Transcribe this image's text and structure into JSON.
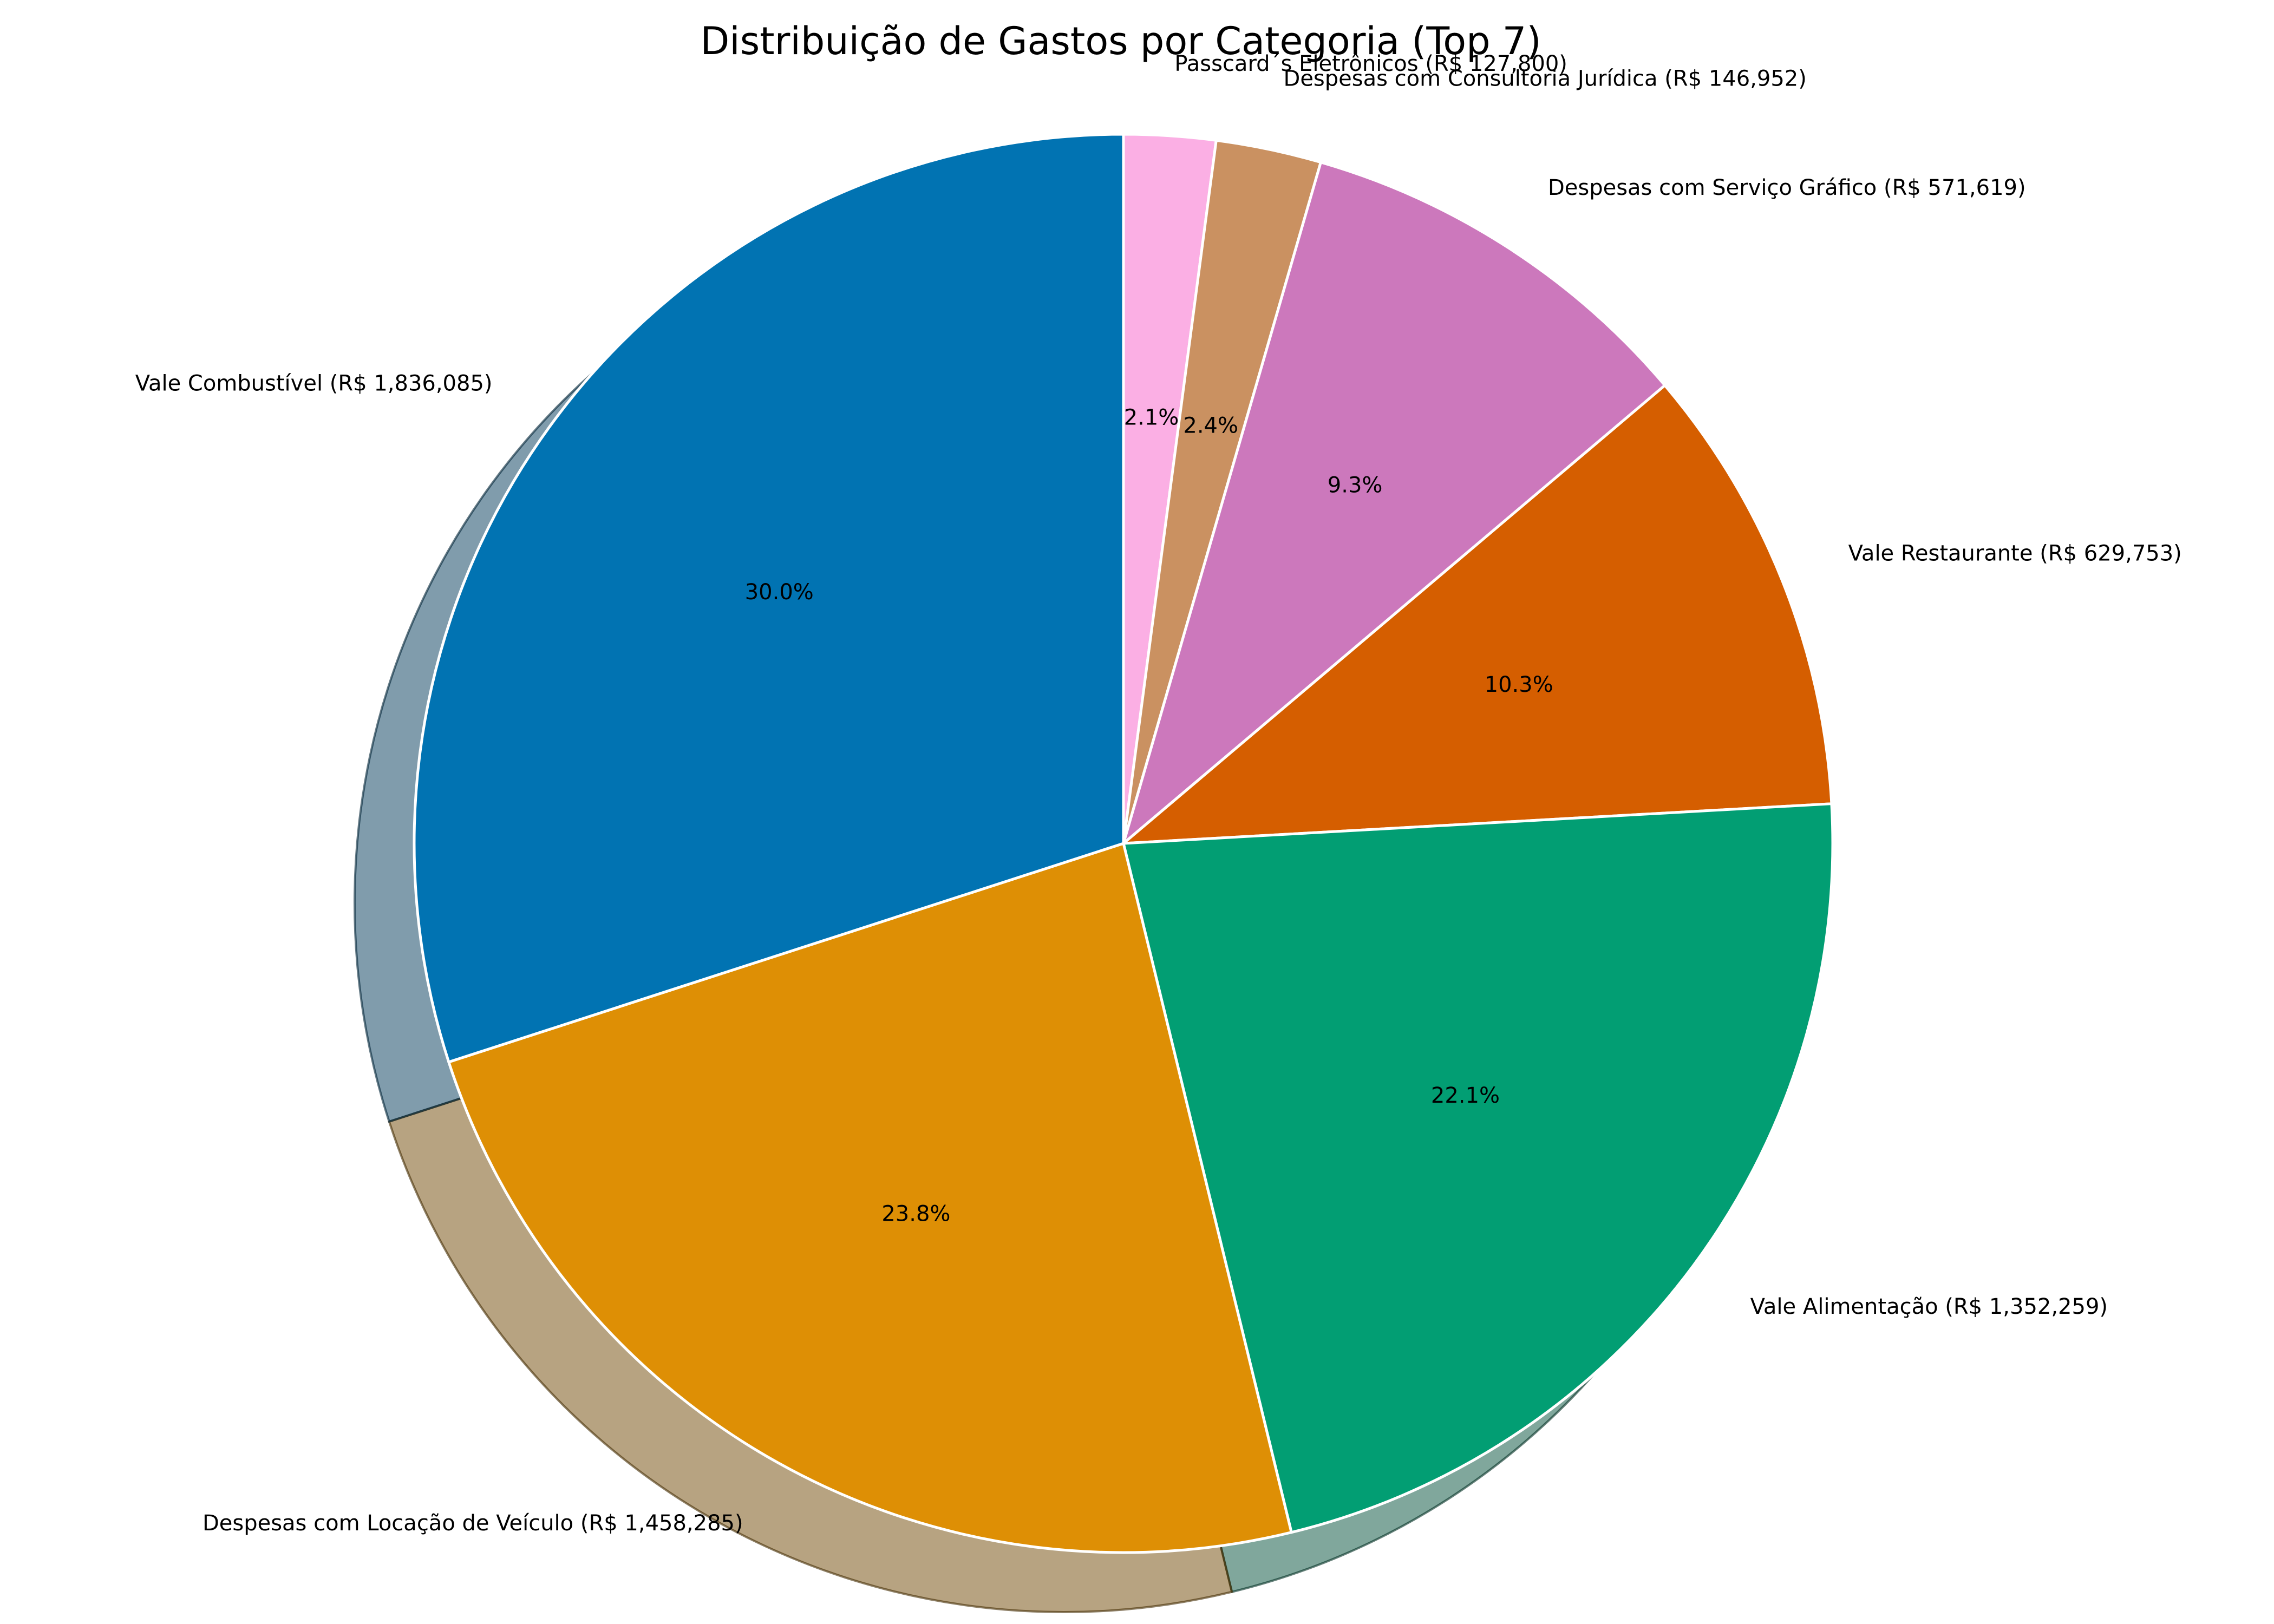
{
  "chart_data": {
    "type": "pie",
    "title": "Distribuição de Gastos por Categoria (Top 7)",
    "shadow": true,
    "start_angle_deg": 90,
    "direction": "clockwise",
    "slices": [
      {
        "label": "Passcard´s Eletrônicos (R$ 127,800)",
        "value": 127800,
        "percent_label": "2.1%",
        "color": "#fbafe4"
      },
      {
        "label": "Despesas com Consultoria Jurídica (R$ 146,952)",
        "value": 146952,
        "percent_label": "2.4%",
        "color": "#ca9161"
      },
      {
        "label": "Despesas com Serviço Gráfico (R$ 571,619)",
        "value": 571619,
        "percent_label": "9.3%",
        "color": "#cc78bc"
      },
      {
        "label": "Vale Restaurante (R$ 629,753)",
        "value": 629753,
        "percent_label": "10.3%",
        "color": "#d55e00"
      },
      {
        "label": "Vale Alimentação (R$ 1,352,259)",
        "value": 1352259,
        "percent_label": "22.1%",
        "color": "#029e73"
      },
      {
        "label": "Despesas com Locação de Veículo (R$ 1,458,285)",
        "value": 1458285,
        "percent_label": "23.8%",
        "color": "#de8f05"
      },
      {
        "label": "Vale Combustível (R$ 1,836,085)",
        "value": 1836085,
        "percent_label": "30.0%",
        "color": "#0173b2"
      }
    ]
  }
}
